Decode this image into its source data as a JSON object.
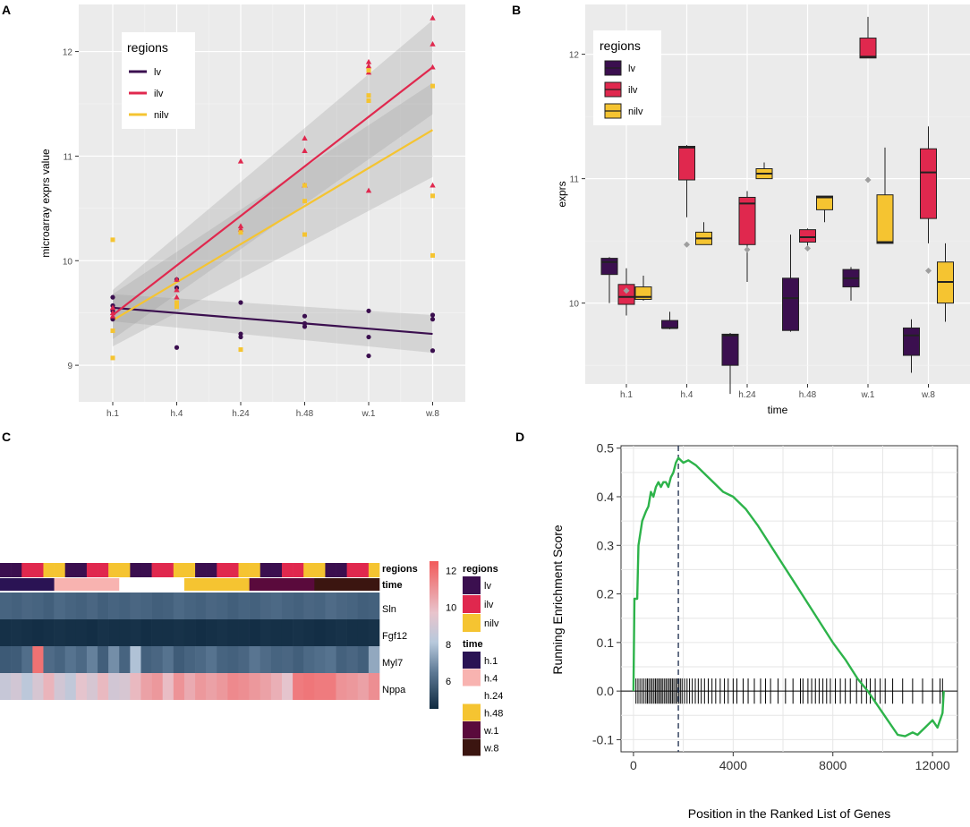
{
  "panel_labels": [
    "A",
    "B",
    "C",
    "D"
  ],
  "colors": {
    "lv": "#3b0f4f",
    "ilv": "#e0284e",
    "nilv": "#f5c431",
    "gsea_line": "#2db34a",
    "panel_bg": "#ebebeb"
  },
  "chart_data": [
    {
      "id": "A",
      "type": "scatter",
      "xlabel": "",
      "ylabel": "microarray exprs value",
      "categories": [
        "h.1",
        "h.4",
        "h.24",
        "h.48",
        "w.1",
        "w.8"
      ],
      "y_ticks": [
        "9",
        "10",
        "11",
        "12"
      ],
      "ylim": [
        8.65,
        12.45
      ],
      "legend_title": "regions",
      "legend_labels": [
        "lv",
        "ilv",
        "nilv"
      ],
      "series": [
        {
          "name": "lv",
          "color": "#3b0f4f",
          "marker": "circle",
          "points": [
            [
              0,
              9.65
            ],
            [
              0,
              9.57
            ],
            [
              0,
              9.52
            ],
            [
              0,
              9.44
            ],
            [
              1,
              9.82
            ],
            [
              1,
              9.74
            ],
            [
              1,
              9.17
            ],
            [
              2,
              9.6
            ],
            [
              2,
              9.3
            ],
            [
              2,
              9.27
            ],
            [
              3,
              9.47
            ],
            [
              3,
              9.4
            ],
            [
              3,
              9.37
            ],
            [
              4,
              9.52
            ],
            [
              4,
              9.27
            ],
            [
              4,
              9.09
            ],
            [
              5,
              9.48
            ],
            [
              5,
              9.44
            ],
            [
              5,
              9.14
            ]
          ],
          "fit": [
            9.55,
            9.3
          ],
          "band_lo": [
            9.42,
            9.12
          ],
          "band_hi": [
            9.68,
            9.48
          ]
        },
        {
          "name": "ilv",
          "color": "#e0284e",
          "marker": "triangle",
          "points": [
            [
              0,
              9.55
            ],
            [
              0,
              9.5
            ],
            [
              0,
              9.47
            ],
            [
              1,
              9.82
            ],
            [
              1,
              9.72
            ],
            [
              1,
              9.65
            ],
            [
              2,
              10.95
            ],
            [
              2,
              10.33
            ],
            [
              2,
              10.3
            ],
            [
              3,
              11.17
            ],
            [
              3,
              11.05
            ],
            [
              3,
              10.72
            ],
            [
              4,
              11.9
            ],
            [
              4,
              11.86
            ],
            [
              4,
              11.8
            ],
            [
              4,
              10.67
            ],
            [
              5,
              12.32
            ],
            [
              5,
              12.07
            ],
            [
              5,
              11.85
            ],
            [
              5,
              10.72
            ]
          ],
          "fit": [
            9.48,
            11.85
          ],
          "band_lo": [
            9.25,
            11.4
          ],
          "band_hi": [
            9.72,
            12.3
          ]
        },
        {
          "name": "nilv",
          "color": "#f5c431",
          "marker": "square",
          "points": [
            [
              0,
              10.2
            ],
            [
              0,
              9.33
            ],
            [
              0,
              9.07
            ],
            [
              1,
              9.6
            ],
            [
              1,
              9.56
            ],
            [
              2,
              10.27
            ],
            [
              2,
              9.15
            ],
            [
              3,
              10.72
            ],
            [
              3,
              10.57
            ],
            [
              3,
              10.25
            ],
            [
              4,
              11.82
            ],
            [
              4,
              11.58
            ],
            [
              4,
              11.53
            ],
            [
              5,
              11.67
            ],
            [
              5,
              10.62
            ],
            [
              5,
              10.05
            ]
          ],
          "fit": [
            9.43,
            11.25
          ],
          "band_lo": [
            9.18,
            10.8
          ],
          "band_hi": [
            9.68,
            11.7
          ]
        }
      ]
    },
    {
      "id": "B",
      "type": "box",
      "xlabel": "time",
      "ylabel": "exprs",
      "categories": [
        "h.1",
        "h.4",
        "h.24",
        "h.48",
        "w.1",
        "w.8"
      ],
      "y_ticks": [
        "10",
        "11",
        "12"
      ],
      "ylim": [
        9.35,
        12.4
      ],
      "legend_title": "regions",
      "legend_labels": [
        "lv",
        "ilv",
        "nilv"
      ],
      "boxes": [
        {
          "cat": 0,
          "group": "lv",
          "min": 10.0,
          "q1": 10.23,
          "median": 10.33,
          "q3": 10.36,
          "max": 10.37
        },
        {
          "cat": 0,
          "group": "ilv",
          "min": 9.9,
          "q1": 9.99,
          "median": 10.05,
          "q3": 10.15,
          "max": 10.28
        },
        {
          "cat": 0,
          "group": "nilv",
          "min": 10.02,
          "q1": 10.03,
          "median": 10.05,
          "q3": 10.13,
          "max": 10.22
        },
        {
          "cat": 1,
          "group": "lv",
          "min": 9.79,
          "q1": 9.8,
          "median": 9.8,
          "q3": 9.86,
          "max": 9.93
        },
        {
          "cat": 1,
          "group": "ilv",
          "min": 10.69,
          "q1": 10.99,
          "median": 11.25,
          "q3": 11.26,
          "max": 11.27
        },
        {
          "cat": 1,
          "group": "nilv",
          "min": 10.47,
          "q1": 10.47,
          "median": 10.52,
          "q3": 10.57,
          "max": 10.65
        },
        {
          "cat": 2,
          "group": "lv",
          "min": 9.27,
          "q1": 9.5,
          "median": 9.74,
          "q3": 9.75,
          "max": 9.76
        },
        {
          "cat": 2,
          "group": "ilv",
          "min": 10.17,
          "q1": 10.47,
          "median": 10.8,
          "q3": 10.85,
          "max": 10.9
        },
        {
          "cat": 2,
          "group": "nilv",
          "min": 11.0,
          "q1": 11.0,
          "median": 11.04,
          "q3": 11.08,
          "max": 11.13
        },
        {
          "cat": 3,
          "group": "lv",
          "min": 9.77,
          "q1": 9.78,
          "median": 10.04,
          "q3": 10.2,
          "max": 10.55
        },
        {
          "cat": 3,
          "group": "ilv",
          "min": 10.45,
          "q1": 10.49,
          "median": 10.53,
          "q3": 10.59,
          "max": 10.6
        },
        {
          "cat": 3,
          "group": "nilv",
          "min": 10.65,
          "q1": 10.75,
          "median": 10.85,
          "q3": 10.86,
          "max": 10.86
        },
        {
          "cat": 4,
          "group": "lv",
          "min": 10.02,
          "q1": 10.13,
          "median": 10.2,
          "q3": 10.27,
          "max": 10.29
        },
        {
          "cat": 4,
          "group": "ilv",
          "min": 11.97,
          "q1": 11.97,
          "median": 11.98,
          "q3": 12.13,
          "max": 12.3
        },
        {
          "cat": 4,
          "group": "nilv",
          "min": 10.48,
          "q1": 10.48,
          "median": 10.49,
          "q3": 10.87,
          "max": 11.25
        },
        {
          "cat": 5,
          "group": "lv",
          "min": 9.44,
          "q1": 9.58,
          "median": 9.74,
          "q3": 9.8,
          "max": 9.87
        },
        {
          "cat": 5,
          "group": "ilv",
          "min": 10.48,
          "q1": 10.68,
          "median": 11.05,
          "q3": 11.24,
          "max": 11.42
        },
        {
          "cat": 5,
          "group": "nilv",
          "min": 9.85,
          "q1": 10.0,
          "median": 10.17,
          "q3": 10.33,
          "max": 10.48
        }
      ],
      "means": [
        [
          0,
          10.1
        ],
        [
          1,
          10.47
        ],
        [
          2,
          10.43
        ],
        [
          3,
          10.44
        ],
        [
          4,
          10.99
        ],
        [
          5,
          10.26
        ]
      ]
    },
    {
      "id": "C",
      "type": "heatmap",
      "rows": [
        "Sln",
        "Fgf12",
        "Myl7",
        "Nppa"
      ],
      "annotation_labels": [
        "regions",
        "time"
      ],
      "regions_pattern": [
        "lv",
        "lv",
        "ilv",
        "ilv",
        "nilv",
        "nilv"
      ],
      "time_blocks": [
        {
          "label": "h.1",
          "color": "#2a1354",
          "cols": 5
        },
        {
          "label": "h.4",
          "color": "#f8b3b0",
          "cols": 6
        },
        {
          "label": "h.24",
          "color": "#ffffff",
          "cols": 6
        },
        {
          "label": "h.48",
          "color": "#f5c431",
          "cols": 6
        },
        {
          "label": "w.1",
          "color": "#5a0a3c",
          "cols": 6
        },
        {
          "label": "w.8",
          "color": "#3b1510",
          "cols": 6
        }
      ],
      "colorbar_ticks": [
        "12",
        "10",
        "8",
        "6"
      ],
      "legend_regions_title": "regions",
      "legend_time_title": "time",
      "legend_regions": [
        "lv",
        "ilv",
        "nilv"
      ],
      "legend_time": [
        "h.1",
        "h.4",
        "h.24",
        "h.48",
        "w.1",
        "w.8"
      ],
      "values": {
        "Sln": [
          7.2,
          7.1,
          7.3,
          7.2,
          7.0,
          7.4,
          7.2,
          7.1,
          7.3,
          7.0,
          7.2,
          7.1,
          7.3,
          7.2,
          7.0,
          7.1,
          7.4,
          7.2,
          7.1,
          7.3,
          7.2,
          7.0,
          7.2,
          7.1,
          7.3,
          7.4,
          7.2,
          7.1,
          7.3,
          7.2,
          7.5,
          7.3,
          7.2,
          7.0,
          7.1
        ],
        "Fgf12": [
          4.8,
          4.9,
          4.8,
          4.7,
          4.8,
          4.9,
          4.8,
          4.8,
          4.7,
          4.9,
          4.8,
          4.8,
          4.9,
          4.7,
          4.8,
          4.8,
          4.9,
          4.8,
          4.7,
          4.8,
          4.9,
          4.8,
          4.8,
          4.7,
          4.9,
          4.8,
          4.8,
          4.9,
          4.8,
          4.7,
          4.8,
          4.9,
          4.8,
          4.8,
          4.9
        ],
        "Myl7": [
          6.8,
          6.9,
          7.6,
          12.0,
          7.5,
          7.2,
          7.8,
          7.4,
          8.2,
          7.0,
          8.4,
          7.2,
          9.2,
          7.1,
          7.3,
          7.8,
          6.9,
          7.2,
          7.4,
          7.8,
          7.2,
          7.1,
          7.3,
          7.9,
          7.5,
          7.2,
          7.3,
          7.0,
          7.4,
          7.6,
          7.8,
          7.1,
          7.3,
          7.0,
          8.8
        ],
        "Nppa": [
          9.6,
          9.8,
          9.4,
          9.9,
          10.6,
          9.8,
          9.5,
          10.2,
          9.9,
          10.5,
          9.8,
          9.9,
          10.5,
          11.0,
          11.2,
          10.4,
          11.3,
          10.8,
          11.2,
          11.0,
          11.2,
          11.5,
          11.4,
          11.2,
          11.0,
          10.7,
          10.2,
          11.8,
          11.9,
          11.8,
          11.8,
          11.3,
          11.2,
          11.0,
          11.4
        ]
      }
    },
    {
      "id": "D",
      "type": "line",
      "xlabel": "Position in the Ranked List of Genes",
      "ylabel": "Running Enrichment Score",
      "x_ticks": [
        "0",
        "4000",
        "8000",
        "12000"
      ],
      "y_ticks": [
        "-0.1",
        "0.0",
        "0.1",
        "0.2",
        "0.3",
        "0.4",
        "0.5"
      ],
      "xlim": [
        -500,
        13000
      ],
      "ylim": [
        -0.125,
        0.505
      ],
      "peak_x": 1800,
      "curve": [
        [
          0,
          0.0
        ],
        [
          40,
          0.19
        ],
        [
          150,
          0.19
        ],
        [
          200,
          0.3
        ],
        [
          350,
          0.35
        ],
        [
          500,
          0.37
        ],
        [
          600,
          0.38
        ],
        [
          700,
          0.41
        ],
        [
          800,
          0.4
        ],
        [
          900,
          0.42
        ],
        [
          1000,
          0.43
        ],
        [
          1100,
          0.42
        ],
        [
          1200,
          0.43
        ],
        [
          1300,
          0.43
        ],
        [
          1400,
          0.42
        ],
        [
          1500,
          0.44
        ],
        [
          1600,
          0.45
        ],
        [
          1700,
          0.47
        ],
        [
          1800,
          0.48
        ],
        [
          2000,
          0.47
        ],
        [
          2200,
          0.475
        ],
        [
          2500,
          0.465
        ],
        [
          2800,
          0.45
        ],
        [
          3200,
          0.43
        ],
        [
          3600,
          0.41
        ],
        [
          4000,
          0.4
        ],
        [
          4500,
          0.375
        ],
        [
          5000,
          0.34
        ],
        [
          5500,
          0.3
        ],
        [
          6000,
          0.26
        ],
        [
          6500,
          0.22
        ],
        [
          7000,
          0.18
        ],
        [
          7500,
          0.14
        ],
        [
          8000,
          0.1
        ],
        [
          8500,
          0.065
        ],
        [
          9000,
          0.025
        ],
        [
          9400,
          0.0
        ],
        [
          9800,
          -0.03
        ],
        [
          10200,
          -0.06
        ],
        [
          10600,
          -0.09
        ],
        [
          10900,
          -0.093
        ],
        [
          11200,
          -0.085
        ],
        [
          11400,
          -0.09
        ],
        [
          11700,
          -0.075
        ],
        [
          12000,
          -0.06
        ],
        [
          12200,
          -0.075
        ],
        [
          12400,
          -0.045
        ],
        [
          12450,
          0.0
        ]
      ],
      "hits": [
        100,
        180,
        260,
        340,
        420,
        500,
        560,
        620,
        690,
        750,
        820,
        880,
        940,
        1000,
        1060,
        1120,
        1180,
        1250,
        1310,
        1380,
        1440,
        1500,
        1560,
        1620,
        1690,
        1750,
        1820,
        1880,
        1950,
        2050,
        2150,
        2250,
        2360,
        2480,
        2600,
        2720,
        2850,
        3000,
        3150,
        3300,
        3480,
        3650,
        3800,
        4000,
        4150,
        4400,
        4600,
        4850,
        5100,
        5300,
        5500,
        5800,
        6100,
        6400,
        6700,
        6800,
        7000,
        7150,
        7300,
        7450,
        7600,
        7750,
        7900,
        8100,
        8300,
        8500,
        8700,
        8950,
        9150,
        9350,
        9500,
        9700,
        9900,
        10100,
        10400,
        10800,
        11200,
        11600,
        12000,
        12300,
        12400
      ]
    }
  ]
}
